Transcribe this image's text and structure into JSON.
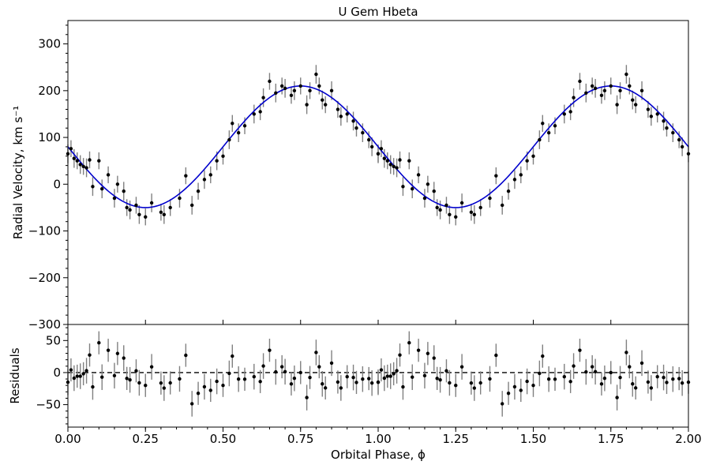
{
  "chart_data": {
    "type": "scatter",
    "title": "U Gem Hbeta",
    "xlabel": "Orbital Phase, ϕ",
    "ylabel": "Radial Velocity, km s⁻¹",
    "residual_ylabel": "Residuals",
    "xlim": [
      0.0,
      2.0
    ],
    "ylim": [
      -300,
      350
    ],
    "residual_ylim": [
      -85,
      75
    ],
    "x_ticks": [
      0.0,
      0.25,
      0.5,
      0.75,
      1.0,
      1.25,
      1.5,
      1.75,
      2.0
    ],
    "x_tick_labels": [
      "0.00",
      "0.25",
      "0.50",
      "0.75",
      "1.00",
      "1.25",
      "1.50",
      "1.75",
      "2.00"
    ],
    "y_ticks": [
      -300,
      -200,
      -100,
      0,
      100,
      200,
      300
    ],
    "y_tick_labels": [
      "−300",
      "−200",
      "−100",
      "0",
      "100",
      "200",
      "300"
    ],
    "residual_y_ticks": [
      -50,
      0,
      50
    ],
    "residual_y_tick_labels": [
      "−50",
      "0",
      "50"
    ],
    "colors": {
      "fit": "#0000cc",
      "points": "#000000",
      "errorbars": "#808080",
      "zero_line": "#000000"
    },
    "fit_model": {
      "gamma": 80,
      "K": 130,
      "phase_max": 0.75
    },
    "series": [
      {
        "x": [
          0.0,
          0.01,
          0.02,
          0.03,
          0.04,
          0.05,
          0.06,
          0.07,
          0.08,
          0.1,
          0.11,
          0.13,
          0.15,
          0.16,
          0.18,
          0.19,
          0.2,
          0.22,
          0.23,
          0.25,
          0.27,
          0.3,
          0.31,
          0.33,
          0.36,
          0.38,
          0.4,
          0.42,
          0.44,
          0.46,
          0.48,
          0.5,
          0.52,
          0.53,
          0.55,
          0.57,
          0.6,
          0.62,
          0.63,
          0.65,
          0.67,
          0.69,
          0.7,
          0.72,
          0.73,
          0.75,
          0.77,
          0.78,
          0.8,
          0.81,
          0.82,
          0.83,
          0.85,
          0.87,
          0.88,
          0.9,
          0.92,
          0.93,
          0.95,
          0.97,
          0.98,
          1.0
        ],
        "y": [
          65,
          76,
          55,
          50,
          42,
          38,
          35,
          52,
          -5,
          50,
          -10,
          20,
          -30,
          0,
          -15,
          -50,
          -55,
          -45,
          -65,
          -70,
          -40,
          -60,
          -65,
          -50,
          -30,
          18,
          -45,
          -15,
          10,
          20,
          50,
          60,
          95,
          130,
          110,
          125,
          150,
          155,
          185,
          220,
          195,
          210,
          205,
          190,
          200,
          210,
          170,
          200,
          235,
          210,
          180,
          170,
          200,
          160,
          145,
          150,
          135,
          120,
          110,
          95,
          80,
          65
        ],
        "yerr": [
          20,
          18,
          20,
          18,
          20,
          18,
          20,
          18,
          20,
          18,
          20,
          18,
          20,
          18,
          20,
          18,
          20,
          18,
          20,
          18,
          20,
          18,
          20,
          18,
          20,
          18,
          20,
          18,
          20,
          18,
          20,
          18,
          20,
          18,
          20,
          18,
          20,
          18,
          20,
          18,
          20,
          18,
          20,
          18,
          20,
          18,
          20,
          18,
          20,
          18,
          20,
          18,
          20,
          18,
          20,
          18,
          20,
          18,
          20,
          18,
          20,
          18
        ]
      }
    ]
  }
}
